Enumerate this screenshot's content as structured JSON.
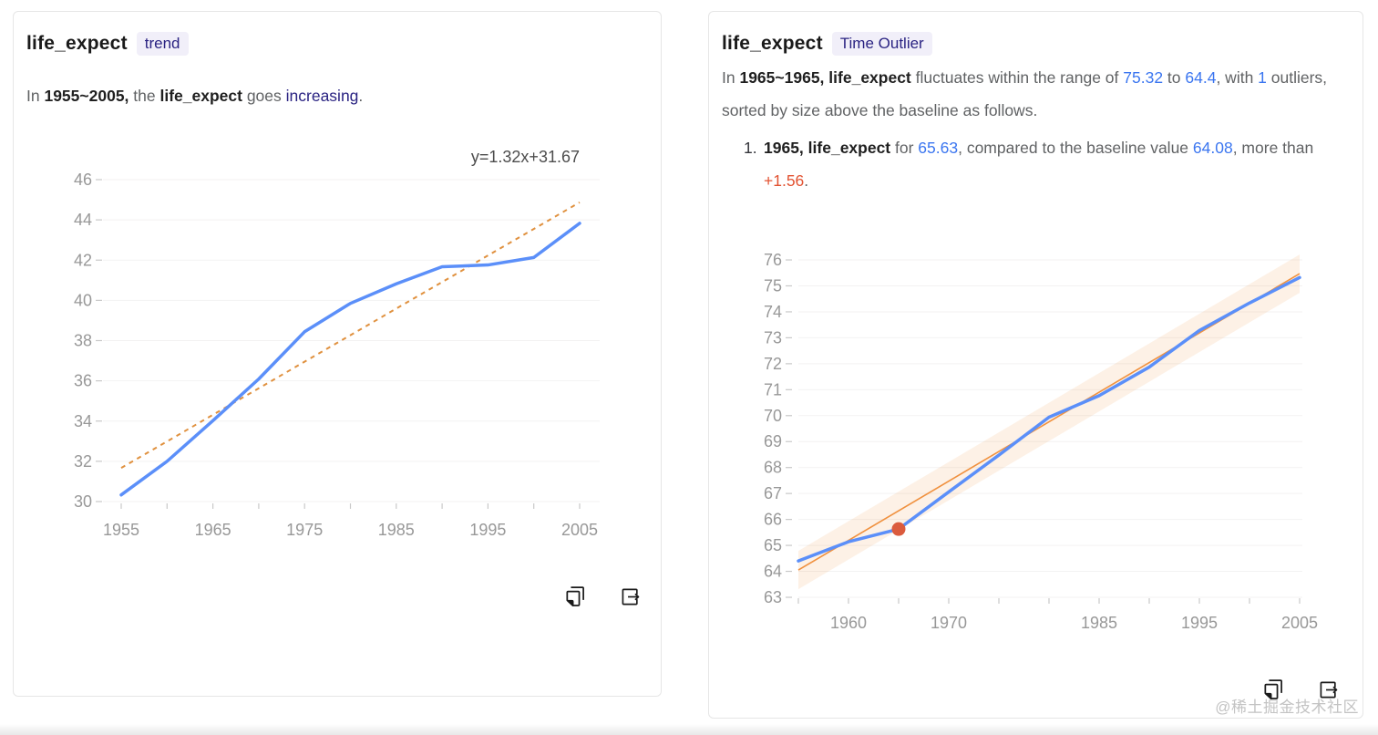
{
  "watermark": "@稀土掘金技术社区",
  "cards": [
    {
      "title": "life_expect",
      "badge": "trend",
      "insight": [
        "In ",
        "1955~2005,",
        " the ",
        "life_expect",
        " goes ",
        "increasing",
        "."
      ],
      "actions": [
        "copy",
        "export"
      ]
    },
    {
      "title": "life_expect",
      "badge": "Time Outlier",
      "insight": [
        "In ",
        "1965~1965,",
        " ",
        "life_expect",
        " fluctuates within the range of ",
        "75.32",
        " to ",
        "64.4",
        ", with ",
        "1",
        " outliers, sorted by size above the baseline as follows."
      ],
      "list": [
        {
          "marker": "1.",
          "tokens": [
            "1965,",
            " ",
            "life_expect",
            " for ",
            "65.63",
            ", compared to the baseline value ",
            "64.08",
            ", more than ",
            "+1.56",
            "."
          ]
        }
      ],
      "actions": [
        "copy",
        "export"
      ]
    }
  ],
  "chart_data": [
    {
      "type": "line",
      "title": "life_expect trend",
      "annotation": "y=1.32x+31.67",
      "x": [
        1955,
        1960,
        1965,
        1970,
        1975,
        1980,
        1985,
        1990,
        1995,
        2000,
        2005
      ],
      "xticks_labeled": [
        1955,
        1965,
        1975,
        1985,
        1995,
        2005
      ],
      "yticks": [
        30,
        32,
        34,
        36,
        38,
        40,
        42,
        44,
        46
      ],
      "ylim": [
        30,
        46
      ],
      "grid": true,
      "series": [
        {
          "name": "life_expect",
          "color": "#5B8FF9",
          "values": [
            30.33,
            32.0,
            34.02,
            36.09,
            38.44,
            39.85,
            40.82,
            41.67,
            41.76,
            42.13,
            43.83
          ]
        }
      ],
      "trend": {
        "slope": 1.32,
        "intercept": 31.67,
        "style": "dashed",
        "color": "#E0913F"
      }
    },
    {
      "type": "line",
      "title": "life_expect time outlier",
      "x": [
        1955,
        1960,
        1965,
        1970,
        1975,
        1980,
        1985,
        1990,
        1995,
        2000,
        2005
      ],
      "xticks_labeled": [
        1960,
        1970,
        1985,
        1995,
        2005
      ],
      "yticks": [
        63,
        64,
        65,
        66,
        67,
        68,
        69,
        70,
        71,
        72,
        73,
        74,
        75,
        76
      ],
      "ylim": [
        63,
        76
      ],
      "grid": true,
      "series": [
        {
          "name": "life_expect",
          "color": "#5B8FF9",
          "values": [
            64.4,
            65.14,
            65.63,
            67.06,
            68.48,
            69.94,
            70.77,
            71.87,
            73.28,
            74.34,
            75.32
          ]
        }
      ],
      "baseline": {
        "start": 64.05,
        "end": 75.47,
        "color": "#F0913F",
        "band_color": "rgba(240,145,63,0.13)"
      },
      "outlier": {
        "x": 1965,
        "value": 65.63,
        "baseline_value": 64.08,
        "delta": "+1.56",
        "color": "#DB5B3D"
      }
    }
  ]
}
